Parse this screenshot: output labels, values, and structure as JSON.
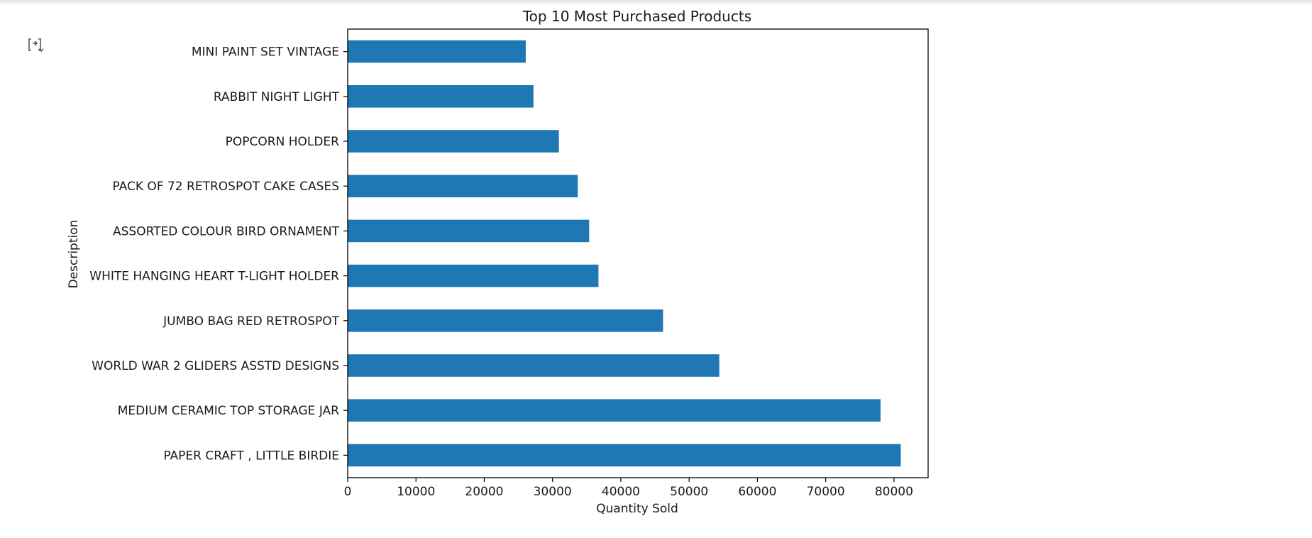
{
  "output_cell": {
    "icon": "output-toggle-icon"
  },
  "chart_data": {
    "type": "bar",
    "orientation": "horizontal",
    "title": "Top 10 Most Purchased Products",
    "xlabel": "Quantity Sold",
    "ylabel": "Description",
    "categories": [
      "PAPER CRAFT , LITTLE BIRDIE",
      "MEDIUM CERAMIC TOP STORAGE JAR",
      "WORLD WAR 2 GLIDERS ASSTD DESIGNS",
      "JUMBO BAG RED RETROSPOT",
      "WHITE HANGING HEART T-LIGHT HOLDER",
      "ASSORTED COLOUR BIRD ORNAMENT",
      "PACK OF 72 RETROSPOT CAKE CASES",
      "POPCORN HOLDER",
      "RABBIT NIGHT LIGHT",
      "MINI PAINT SET VINTAGE"
    ],
    "values": [
      80995,
      78033,
      54415,
      46181,
      36725,
      35362,
      33693,
      30931,
      27202,
      26076
    ],
    "xlim": [
      0,
      85000
    ],
    "xticks": [
      0,
      10000,
      20000,
      30000,
      40000,
      50000,
      60000,
      70000,
      80000
    ],
    "bar_color": "#1f77b4",
    "grid": false,
    "legend": "none"
  }
}
